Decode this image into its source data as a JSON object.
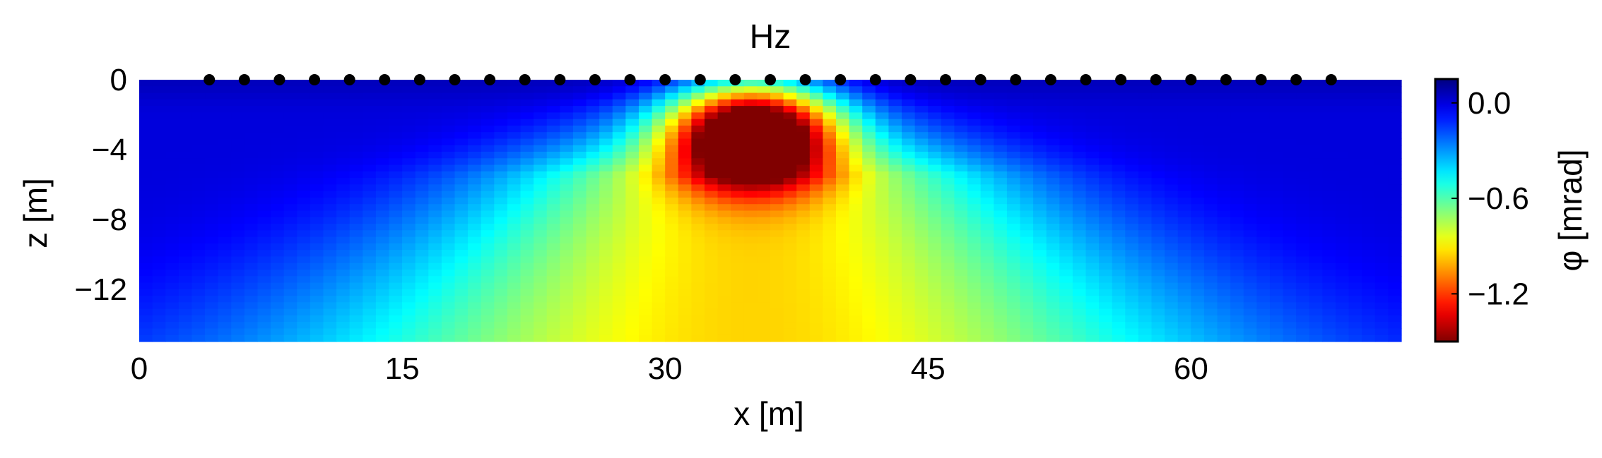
{
  "chart_data": {
    "type": "heatmap",
    "title": "Hz",
    "xlabel": "x [m]",
    "ylabel": "z [m]",
    "xlim": [
      0,
      72
    ],
    "ylim": [
      -15,
      0
    ],
    "x_ticks": [
      0,
      15,
      30,
      45,
      60
    ],
    "x_tick_labels": [
      "0",
      "15",
      "30",
      "45",
      "60"
    ],
    "y_ticks": [
      0,
      -4,
      -8,
      -12
    ],
    "y_tick_labels": [
      "0",
      "−4",
      "−8",
      "−12"
    ],
    "colorbar": {
      "label": "φ [mrad]",
      "range": [
        -1.5,
        0.15
      ],
      "ticks": [
        0.0,
        -0.6,
        -1.2
      ],
      "tick_labels": [
        "0.0",
        "−0.6",
        "−1.2"
      ],
      "colormap": "jet"
    },
    "field_description_values": {
      "background": 0.0,
      "anomaly_center": {
        "x": 35,
        "z": -3
      },
      "anomaly_min": -1.5,
      "deep_level_center": -0.85
    },
    "electrodes": {
      "z": 0,
      "x": [
        4,
        6,
        8,
        10,
        12,
        14,
        16,
        18,
        20,
        22,
        24,
        26,
        28,
        30,
        32,
        34,
        36,
        38,
        40,
        42,
        44,
        46,
        48,
        50,
        52,
        54,
        56,
        58,
        60,
        62,
        64,
        66,
        68
      ]
    },
    "grid": false,
    "legend": "none"
  }
}
